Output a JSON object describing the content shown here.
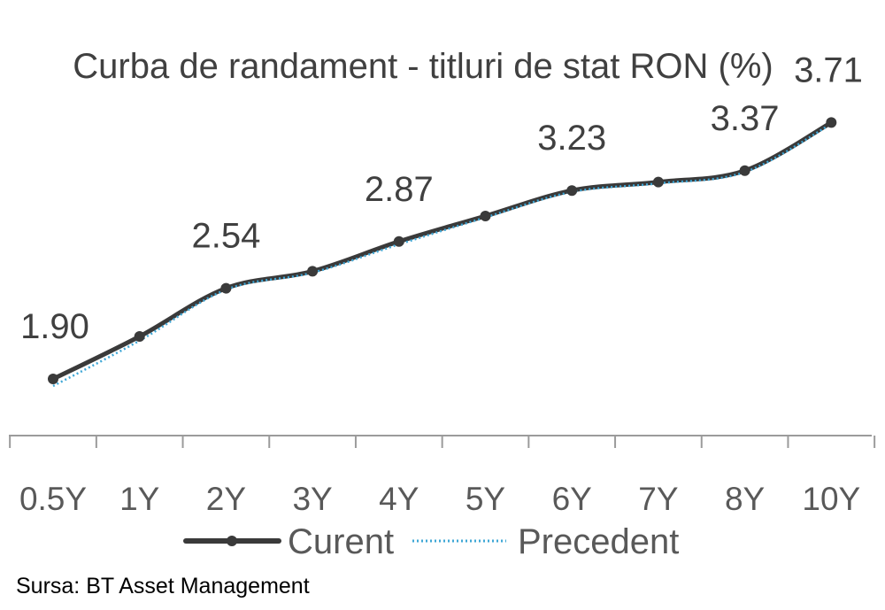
{
  "chart_data": {
    "type": "line",
    "title": "Curba de randament - titluri de stat RON (%)",
    "categories": [
      "0.5Y",
      "1Y",
      "2Y",
      "3Y",
      "4Y",
      "5Y",
      "6Y",
      "7Y",
      "8Y",
      "10Y"
    ],
    "series": [
      {
        "name": "Curent",
        "values": [
          1.9,
          2.2,
          2.54,
          2.66,
          2.87,
          3.05,
          3.23,
          3.29,
          3.37,
          3.71
        ],
        "color": "#3a3a3a",
        "style": "solid-with-markers"
      },
      {
        "name": "Precedent",
        "values": [
          1.85,
          2.17,
          2.53,
          2.65,
          2.85,
          3.04,
          3.22,
          3.28,
          3.36,
          3.7
        ],
        "color": "#3fa7d6",
        "style": "dotted"
      }
    ],
    "data_labels": [
      {
        "category": "0.5Y",
        "text": "1.90"
      },
      {
        "category": "2Y",
        "text": "2.54"
      },
      {
        "category": "4Y",
        "text": "2.87"
      },
      {
        "category": "6Y",
        "text": "3.23"
      },
      {
        "category": "8Y",
        "text": "3.37"
      },
      {
        "category": "10Y",
        "text": "3.71"
      }
    ],
    "ylim": [
      1.5,
      4.0
    ],
    "grid": false,
    "legend_position": "bottom"
  },
  "source": "Sursa: BT Asset Management"
}
